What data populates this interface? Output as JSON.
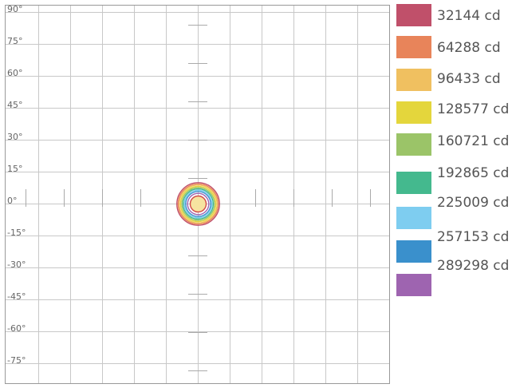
{
  "chart_data": {
    "type": "isocandela",
    "y_ticks": [
      "90°",
      "75°",
      "60°",
      "45°",
      "30°",
      "15°",
      "0°",
      "-15°",
      "-30°",
      "-45°",
      "-60°",
      "-75°"
    ],
    "y_tick_values": [
      90,
      75,
      60,
      45,
      30,
      15,
      0,
      -15,
      -30,
      -45,
      -60,
      -75
    ],
    "ylim": [
      -90,
      90
    ],
    "xlim": [
      -90,
      90
    ],
    "grid": true,
    "legend_position": "right",
    "unit": "cd",
    "levels": [
      {
        "label": "32144 cd",
        "value": 32144,
        "color": "#c0506a",
        "radius_deg": 10.0
      },
      {
        "label": "64288 cd",
        "value": 64288,
        "color": "#e8845a",
        "radius_deg": 9.4
      },
      {
        "label": "96433 cd",
        "value": 96433,
        "color": "#f0c060",
        "radius_deg": 8.9
      },
      {
        "label": "128577 cd",
        "value": 128577,
        "color": "#e4d63c",
        "radius_deg": 8.3
      },
      {
        "label": "160721 cd",
        "value": 160721,
        "color": "#9bc468",
        "radius_deg": 7.7
      },
      {
        "label": "192865 cd",
        "value": 192865,
        "color": "#44b98e",
        "radius_deg": 7.1
      },
      {
        "label": "225009 cd",
        "value": 225009,
        "color": "#7ecdf0",
        "radius_deg": 6.5
      },
      {
        "label": "257153 cd",
        "value": 257153,
        "color": "#3a90cc",
        "radius_deg": 5.9
      },
      {
        "label": "289298 cd",
        "value": 289298,
        "color": "#9e64b0",
        "radius_deg": 5.0
      }
    ]
  }
}
